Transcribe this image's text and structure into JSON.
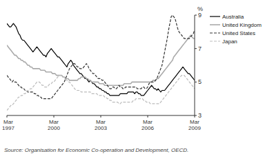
{
  "chart_data": {
    "type": "line",
    "ylabel": "%",
    "source": "Source: Organisation for Economic Co-operation and Development, OECD.",
    "ylim": [
      3,
      9
    ],
    "yticks": [
      3,
      5,
      7,
      9
    ],
    "grid": false,
    "legend": "right",
    "categories": [
      "Mar\n1997",
      null,
      null,
      null,
      null,
      null,
      null,
      null,
      null,
      null,
      null,
      null,
      null,
      null,
      null,
      null,
      null,
      null,
      null,
      null,
      null,
      null,
      null,
      null,
      null,
      null,
      null,
      null,
      null,
      null,
      null,
      null,
      null,
      null,
      null,
      null,
      "Mar\n2000",
      null,
      null,
      null,
      null,
      null,
      null,
      null,
      null,
      null,
      null,
      null,
      null,
      null,
      null,
      null,
      null,
      null,
      null,
      null,
      null,
      null,
      null,
      null,
      null,
      null,
      null,
      null,
      null,
      null,
      null,
      null,
      null,
      null,
      null,
      null,
      "Mar\n2003",
      null,
      null,
      null,
      null,
      null,
      null,
      null,
      null,
      null,
      null,
      null,
      null,
      null,
      null,
      null,
      null,
      null,
      null,
      null,
      null,
      null,
      null,
      null,
      null,
      null,
      null,
      null,
      null,
      null,
      null,
      null,
      null,
      null,
      null,
      null,
      "Mar\n2006",
      null,
      null,
      null,
      null,
      null,
      null,
      null,
      null,
      null,
      null,
      null,
      null,
      null,
      null,
      null,
      null,
      null,
      null,
      null,
      null,
      null,
      null,
      null,
      null,
      null,
      null,
      null,
      null,
      null,
      null,
      null,
      null,
      null,
      null,
      null,
      "Mar\n2009"
    ],
    "series": [
      {
        "name": "Australia",
        "color": "#000000",
        "line_style": "solid",
        "values": [
          8.5,
          8.4,
          8.3,
          8.3,
          8.4,
          8.5,
          8.4,
          8.3,
          8.1,
          7.9,
          7.8,
          7.6,
          7.5,
          7.5,
          7.4,
          7.3,
          7.2,
          7.1,
          7.0,
          6.9,
          6.8,
          6.9,
          7.0,
          7.1,
          7.0,
          6.9,
          6.8,
          6.7,
          6.6,
          6.6,
          6.5,
          6.7,
          6.8,
          6.9,
          7.0,
          6.9,
          6.8,
          6.7,
          6.6,
          6.5,
          6.5,
          6.4,
          6.3,
          6.2,
          6.1,
          6.0,
          5.9,
          6.1,
          6.2,
          6.3,
          6.2,
          6.0,
          5.9,
          5.8,
          5.7,
          5.6,
          5.5,
          5.5,
          5.4,
          5.3,
          5.2,
          5.2,
          5.1,
          5.0,
          5.1,
          5.0,
          4.9,
          4.9,
          4.8,
          4.7,
          4.7,
          4.6,
          4.6,
          4.5,
          4.5,
          4.4,
          4.4,
          4.3,
          4.3,
          4.2,
          4.2,
          4.2,
          4.2,
          4.2,
          4.2,
          4.2,
          4.2,
          4.3,
          4.3,
          4.3,
          4.3,
          4.3,
          4.3,
          4.4,
          4.4,
          4.4,
          4.4,
          4.4,
          4.3,
          4.4,
          4.4,
          4.3,
          4.3,
          4.2,
          4.2,
          4.2,
          4.3,
          4.4,
          4.5,
          4.6,
          4.7,
          4.8,
          4.7,
          4.6,
          4.6,
          4.5,
          4.6,
          4.5,
          4.4,
          4.5,
          4.5,
          4.5,
          4.6,
          4.7,
          4.8,
          4.9,
          5.0,
          5.1,
          5.2,
          5.3,
          5.4,
          5.5,
          5.6,
          5.7,
          5.8,
          5.9,
          5.8,
          5.7,
          5.6,
          5.5,
          5.5,
          5.4,
          5.3,
          5.2,
          5.1
        ]
      },
      {
        "name": "United Kingdom",
        "color": "#aaaaaa",
        "line_style": "solid",
        "values": [
          7.2,
          7.1,
          7.0,
          6.9,
          6.8,
          6.7,
          6.6,
          6.6,
          6.5,
          6.4,
          6.4,
          6.3,
          6.3,
          6.2,
          6.2,
          6.1,
          6.0,
          6.0,
          5.9,
          5.9,
          5.8,
          5.8,
          5.8,
          5.8,
          5.8,
          5.8,
          5.7,
          5.7,
          5.7,
          5.7,
          5.6,
          5.6,
          5.6,
          5.6,
          5.6,
          5.5,
          5.5,
          5.5,
          5.4,
          5.4,
          5.4,
          5.4,
          5.4,
          5.3,
          5.3,
          5.2,
          5.2,
          5.2,
          5.1,
          5.1,
          5.1,
          5.1,
          5.1,
          5.1,
          5.1,
          5.2,
          5.2,
          5.3,
          5.3,
          5.3,
          5.3,
          5.2,
          5.2,
          5.1,
          5.1,
          5.0,
          5.0,
          5.0,
          5.0,
          5.0,
          5.0,
          4.9,
          4.9,
          4.9,
          4.9,
          4.8,
          4.8,
          4.8,
          4.8,
          4.8,
          4.8,
          4.8,
          4.8,
          4.8,
          4.8,
          4.8,
          4.8,
          4.8,
          4.8,
          4.8,
          4.9,
          4.9,
          4.9,
          4.9,
          4.9,
          4.9,
          5.0,
          5.0,
          5.0,
          5.0,
          5.0,
          5.0,
          5.0,
          5.0,
          5.0,
          5.0,
          5.0,
          5.0,
          5.0,
          5.0,
          5.0,
          5.0,
          5.1,
          5.1,
          5.1,
          5.2,
          5.2,
          5.3,
          5.4,
          5.5,
          5.6,
          5.7,
          5.8,
          5.9,
          6.0,
          6.1,
          6.2,
          6.3,
          6.5,
          6.6,
          6.7,
          6.8,
          6.9,
          7.0,
          7.1,
          7.2,
          7.3,
          7.4,
          7.5,
          7.6,
          7.7,
          7.8,
          7.7,
          7.6,
          7.6
        ]
      },
      {
        "name": "United States",
        "color": "#333333",
        "line_style": "dashed",
        "values": [
          5.4,
          5.3,
          5.2,
          5.1,
          5.0,
          5.1,
          5.0,
          5.0,
          4.9,
          4.8,
          4.7,
          4.7,
          4.6,
          4.6,
          4.5,
          4.5,
          4.4,
          4.4,
          4.4,
          4.4,
          4.4,
          4.3,
          4.3,
          4.2,
          4.2,
          4.1,
          4.1,
          4.0,
          4.0,
          4.0,
          4.0,
          4.0,
          4.0,
          4.0,
          4.0,
          4.1,
          4.2,
          4.3,
          4.4,
          4.5,
          4.6,
          4.7,
          4.8,
          4.9,
          5.0,
          5.2,
          5.4,
          5.6,
          5.8,
          5.9,
          6.0,
          6.1,
          6.1,
          6.0,
          5.9,
          5.9,
          5.8,
          5.8,
          5.8,
          5.9,
          6.0,
          6.1,
          6.0,
          5.8,
          5.7,
          5.6,
          5.5,
          5.5,
          5.4,
          5.3,
          5.2,
          5.2,
          5.2,
          5.1,
          5.1,
          5.0,
          4.9,
          4.8,
          4.7,
          4.6,
          4.6,
          4.7,
          4.7,
          4.6,
          4.6,
          4.7,
          4.8,
          4.7,
          4.7,
          4.6,
          4.6,
          4.7,
          4.7,
          4.7,
          4.7,
          4.7,
          4.7,
          4.7,
          4.7,
          4.7,
          4.6,
          4.6,
          4.6,
          4.6,
          4.7,
          4.7,
          4.6,
          4.6,
          4.7,
          4.9,
          5.0,
          5.0,
          5.0,
          5.0,
          5.1,
          5.2,
          5.4,
          5.6,
          5.8,
          6.0,
          6.4,
          6.8,
          7.2,
          7.6,
          8.1,
          8.5,
          8.9,
          9.0,
          8.9,
          8.8,
          8.5,
          8.2,
          8.0,
          7.9,
          7.8,
          7.7,
          7.6,
          7.6,
          7.6,
          7.6,
          7.6,
          7.7,
          7.8,
          7.9,
          8.1
        ]
      },
      {
        "name": "Japan",
        "color": "#bbbbbb",
        "line_style": "dashed",
        "values": [
          3.3,
          3.4,
          3.5,
          3.6,
          3.6,
          3.7,
          3.8,
          3.9,
          4.0,
          4.1,
          4.1,
          4.2,
          4.2,
          4.3,
          4.3,
          4.4,
          4.5,
          4.5,
          4.6,
          4.6,
          4.7,
          4.8,
          4.9,
          5.0,
          5.0,
          5.0,
          4.9,
          4.8,
          4.8,
          4.7,
          4.7,
          4.7,
          4.8,
          4.9,
          4.9,
          5.0,
          5.0,
          5.1,
          5.2,
          5.3,
          5.4,
          5.4,
          5.4,
          5.3,
          5.3,
          5.2,
          5.1,
          5.0,
          5.0,
          4.9,
          4.8,
          4.7,
          4.6,
          4.5,
          4.5,
          4.5,
          4.5,
          4.4,
          4.4,
          4.4,
          4.4,
          4.4,
          4.4,
          4.4,
          4.4,
          4.3,
          4.3,
          4.3,
          4.3,
          4.3,
          4.2,
          4.2,
          4.2,
          4.2,
          4.2,
          4.1,
          4.1,
          4.0,
          4.0,
          3.9,
          3.9,
          3.8,
          3.8,
          3.8,
          3.8,
          3.8,
          3.7,
          3.7,
          3.8,
          3.8,
          3.8,
          3.8,
          3.8,
          3.8,
          3.8,
          3.8,
          3.8,
          3.9,
          3.9,
          4.0,
          4.0,
          4.0,
          4.0,
          4.0,
          4.0,
          3.9,
          3.9,
          3.8,
          3.8,
          3.8,
          3.7,
          3.7,
          3.7,
          3.7,
          3.7,
          3.7,
          3.7,
          3.7,
          3.8,
          3.9,
          4.0,
          4.1,
          4.2,
          4.3,
          4.4,
          4.5,
          4.6,
          4.7,
          4.8,
          4.9,
          5.0,
          5.1,
          5.2,
          5.3,
          5.4,
          5.4,
          5.4,
          5.3,
          5.2,
          5.1,
          5.0,
          4.9,
          4.8,
          4.7,
          4.6
        ]
      }
    ]
  }
}
